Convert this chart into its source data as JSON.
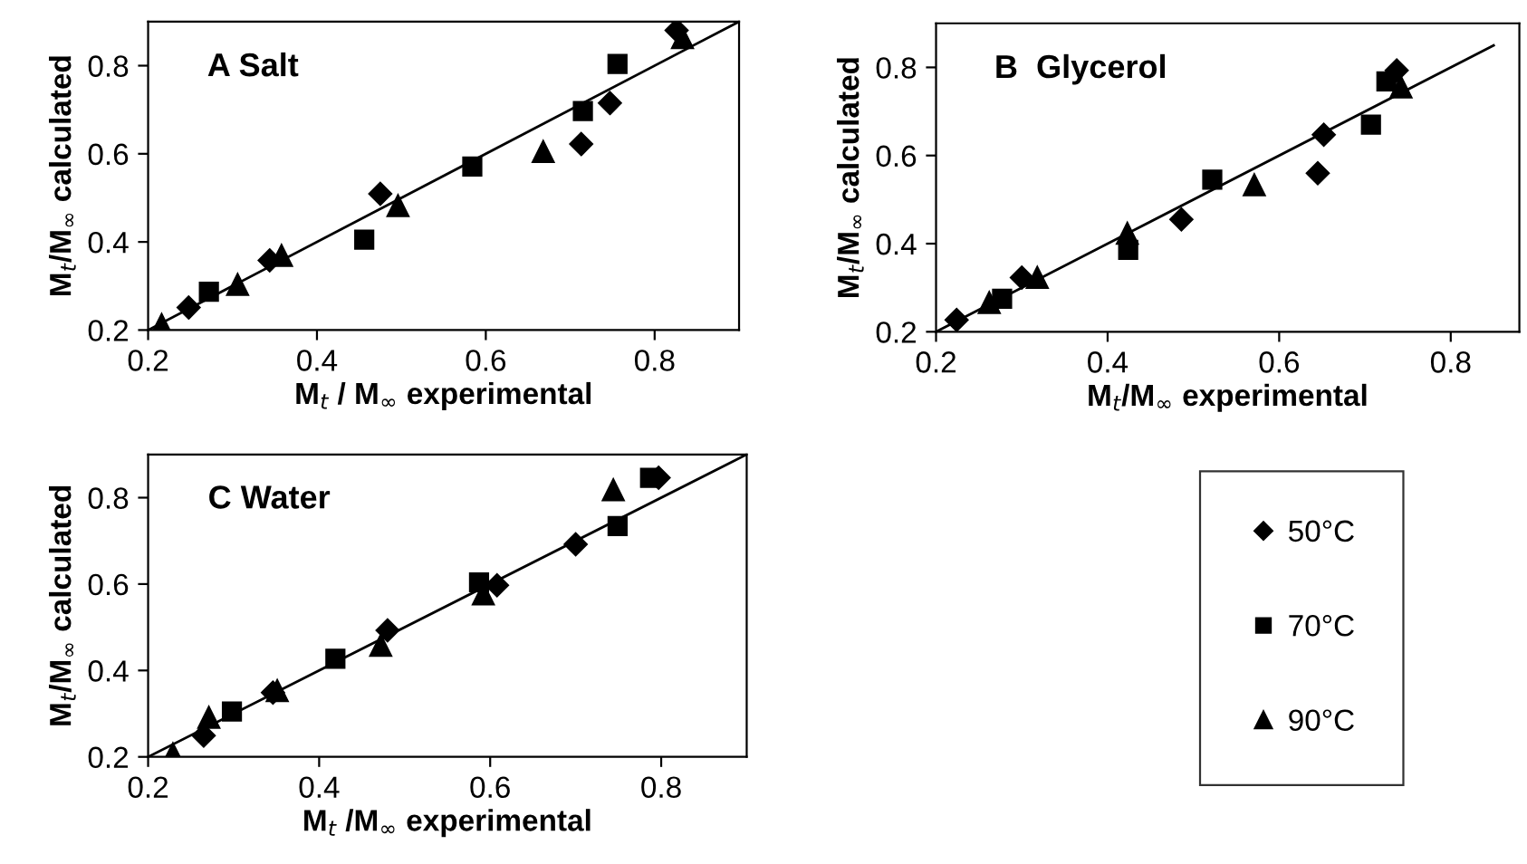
{
  "chart_data": [
    {
      "type": "scatter",
      "title": "A Salt",
      "xlabel": "M$_{t}$ / M$_{∞}$ experimental",
      "ylabel": "M$_{t}$/M$_{∞}$ calculated",
      "xlim": [
        0.2,
        0.9
      ],
      "ylim": [
        0.2,
        0.9
      ],
      "xticks": [
        0.2,
        0.4,
        0.6,
        0.8
      ],
      "yticks": [
        0.2,
        0.4,
        0.6,
        0.8
      ],
      "grid": false,
      "legend": false,
      "series": [
        {
          "color": "#000000",
          "marker": "diamond",
          "x": [
            0.248,
            0.344,
            0.475,
            0.713,
            0.747,
            0.826
          ],
          "values": [
            0.251,
            0.358,
            0.509,
            0.622,
            0.715,
            0.88
          ]
        },
        {
          "color": "#000000",
          "marker": "square",
          "x": [
            0.272,
            0.456,
            0.584,
            0.715,
            0.756
          ],
          "values": [
            0.287,
            0.405,
            0.571,
            0.697,
            0.804
          ]
        },
        {
          "color": "#000000",
          "marker": "triangle",
          "x": [
            0.216,
            0.306,
            0.358,
            0.496,
            0.668,
            0.833
          ],
          "values": [
            0.212,
            0.303,
            0.369,
            0.482,
            0.605,
            0.863
          ]
        },
        {
          "type": "line",
          "color": "#000000",
          "line_style": "solid",
          "x": [
            0.2,
            0.9
          ],
          "values": [
            0.2,
            0.9
          ]
        }
      ]
    },
    {
      "type": "scatter",
      "title": "B  Glycerol",
      "xlabel": "M$_{t}$/M$_{∞}$ experimental",
      "ylabel": "M$_{t}$/M$_{∞}$ calculated",
      "xlim": [
        0.2,
        0.88
      ],
      "ylim": [
        0.2,
        0.9
      ],
      "xticks": [
        0.2,
        0.4,
        0.6,
        0.8
      ],
      "yticks": [
        0.2,
        0.4,
        0.6,
        0.8
      ],
      "grid": false,
      "legend": false,
      "series": [
        {
          "color": "#000000",
          "marker": "diamond",
          "x": [
            0.224,
            0.3,
            0.486,
            0.645,
            0.652,
            0.737
          ],
          "values": [
            0.227,
            0.323,
            0.455,
            0.56,
            0.647,
            0.793
          ]
        },
        {
          "color": "#000000",
          "marker": "square",
          "x": [
            0.277,
            0.424,
            0.522,
            0.707,
            0.725
          ],
          "values": [
            0.275,
            0.386,
            0.545,
            0.67,
            0.768
          ]
        },
        {
          "color": "#000000",
          "marker": "triangle",
          "x": [
            0.262,
            0.318,
            0.423,
            0.571,
            0.742
          ],
          "values": [
            0.266,
            0.323,
            0.423,
            0.533,
            0.755
          ]
        },
        {
          "type": "line",
          "color": "#000000",
          "line_style": "solid",
          "x": [
            0.2,
            0.85
          ],
          "values": [
            0.2,
            0.85
          ]
        }
      ]
    },
    {
      "type": "scatter",
      "title": "C Water",
      "xlabel": "M$_{t}$ /M$_{∞}$ experimental",
      "ylabel": "M$_{t}$/M$_{∞}$ calculated",
      "xlim": [
        0.2,
        0.9
      ],
      "ylim": [
        0.2,
        0.9
      ],
      "xticks": [
        0.2,
        0.4,
        0.6,
        0.8
      ],
      "yticks": [
        0.2,
        0.4,
        0.6,
        0.8
      ],
      "grid": false,
      "legend": "right",
      "series": [
        {
          "name": "50°C",
          "color": "#000000",
          "marker": "diamond",
          "x": [
            0.265,
            0.346,
            0.48,
            0.608,
            0.7,
            0.797
          ],
          "values": [
            0.249,
            0.349,
            0.493,
            0.597,
            0.692,
            0.846
          ]
        },
        {
          "name": "70°C",
          "color": "#000000",
          "marker": "square",
          "x": [
            0.298,
            0.419,
            0.587,
            0.749,
            0.787
          ],
          "values": [
            0.305,
            0.427,
            0.604,
            0.734,
            0.846
          ]
        },
        {
          "name": "90°C",
          "color": "#000000",
          "marker": "triangle",
          "x": [
            0.229,
            0.271,
            0.351,
            0.472,
            0.592,
            0.744
          ],
          "values": [
            0.207,
            0.291,
            0.353,
            0.458,
            0.577,
            0.818
          ]
        },
        {
          "type": "line",
          "color": "#000000",
          "line_style": "solid",
          "x": [
            0.2,
            0.9
          ],
          "values": [
            0.2,
            0.9
          ]
        }
      ]
    }
  ]
}
